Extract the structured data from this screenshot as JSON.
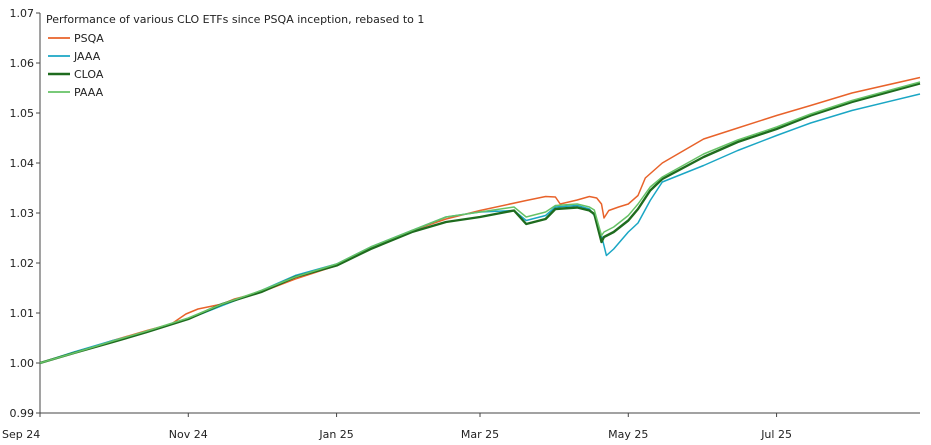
{
  "chart_data": {
    "type": "line",
    "title": "Performance of various CLO ETFs since PSQA inception, rebased to 1",
    "xlabel": "",
    "ylabel": "",
    "ylim": [
      0.99,
      1.07
    ],
    "yticks": [
      "0.99",
      "1.00",
      "1.01",
      "1.02",
      "1.03",
      "1.04",
      "1.05",
      "1.06",
      "1.07"
    ],
    "xlim": [
      "2024-09-01",
      "2025-08-29"
    ],
    "xticks": [
      {
        "date": "2024-09-01",
        "label": "Sep 24"
      },
      {
        "date": "2024-11-01",
        "label": "Nov 24"
      },
      {
        "date": "2025-01-01",
        "label": "Jan 25"
      },
      {
        "date": "2025-03-01",
        "label": "Mar 25"
      },
      {
        "date": "2025-05-01",
        "label": "May 25"
      },
      {
        "date": "2025-07-01",
        "label": "Jul 25"
      }
    ],
    "grid": false,
    "legend_position": "top-left",
    "series": [
      {
        "name": "PSQA",
        "color": "#e8622a",
        "points": [
          [
            "2024-09-01",
            1.0
          ],
          [
            "2024-09-15",
            1.002
          ],
          [
            "2024-10-01",
            1.0045
          ],
          [
            "2024-10-15",
            1.0065
          ],
          [
            "2024-10-25",
            1.0078
          ],
          [
            "2024-10-31",
            1.0098
          ],
          [
            "2024-11-05",
            1.0108
          ],
          [
            "2024-11-15",
            1.0118
          ],
          [
            "2024-11-20",
            1.0128
          ],
          [
            "2024-12-01",
            1.0142
          ],
          [
            "2024-12-15",
            1.0168
          ],
          [
            "2025-01-01",
            1.0195
          ],
          [
            "2025-01-15",
            1.0228
          ],
          [
            "2025-02-01",
            1.0265
          ],
          [
            "2025-02-15",
            1.0288
          ],
          [
            "2025-03-01",
            1.0305
          ],
          [
            "2025-03-20",
            1.0325
          ],
          [
            "2025-03-28",
            1.0333
          ],
          [
            "2025-04-01",
            1.0332
          ],
          [
            "2025-04-03",
            1.0318
          ],
          [
            "2025-04-10",
            1.0326
          ],
          [
            "2025-04-15",
            1.0333
          ],
          [
            "2025-04-18",
            1.033
          ],
          [
            "2025-04-20",
            1.0318
          ],
          [
            "2025-04-21",
            1.029
          ],
          [
            "2025-04-23",
            1.0305
          ],
          [
            "2025-04-27",
            1.0312
          ],
          [
            "2025-05-01",
            1.0318
          ],
          [
            "2025-05-05",
            1.0335
          ],
          [
            "2025-05-08",
            1.037
          ],
          [
            "2025-05-15",
            1.04
          ],
          [
            "2025-06-01",
            1.0448
          ],
          [
            "2025-06-15",
            1.047
          ],
          [
            "2025-07-01",
            1.0495
          ],
          [
            "2025-07-15",
            1.0515
          ],
          [
            "2025-08-01",
            1.054
          ],
          [
            "2025-08-29",
            1.0571
          ]
        ]
      },
      {
        "name": "JAAA",
        "color": "#1aa6c4",
        "points": [
          [
            "2024-09-01",
            1.0
          ],
          [
            "2024-09-15",
            1.0022
          ],
          [
            "2024-10-01",
            1.0045
          ],
          [
            "2024-10-15",
            1.0062
          ],
          [
            "2024-11-01",
            1.0088
          ],
          [
            "2024-11-15",
            1.0115
          ],
          [
            "2024-12-01",
            1.0145
          ],
          [
            "2024-12-15",
            1.0175
          ],
          [
            "2025-01-01",
            1.0198
          ],
          [
            "2025-01-15",
            1.0232
          ],
          [
            "2025-02-01",
            1.0265
          ],
          [
            "2025-02-15",
            1.0292
          ],
          [
            "2025-03-01",
            1.0302
          ],
          [
            "2025-03-15",
            1.0305
          ],
          [
            "2025-03-20",
            1.0285
          ],
          [
            "2025-03-28",
            1.0295
          ],
          [
            "2025-04-01",
            1.0312
          ],
          [
            "2025-04-10",
            1.0315
          ],
          [
            "2025-04-15",
            1.0308
          ],
          [
            "2025-04-17",
            1.0295
          ],
          [
            "2025-04-20",
            1.0255
          ],
          [
            "2025-04-22",
            1.0215
          ],
          [
            "2025-04-25",
            1.0228
          ],
          [
            "2025-05-01",
            1.0262
          ],
          [
            "2025-05-05",
            1.028
          ],
          [
            "2025-05-10",
            1.0325
          ],
          [
            "2025-05-15",
            1.0362
          ],
          [
            "2025-06-01",
            1.0395
          ],
          [
            "2025-06-15",
            1.0425
          ],
          [
            "2025-07-01",
            1.0455
          ],
          [
            "2025-07-15",
            1.048
          ],
          [
            "2025-08-01",
            1.0505
          ],
          [
            "2025-08-29",
            1.0538
          ]
        ]
      },
      {
        "name": "CLOA",
        "color": "#1e6b1e",
        "points": [
          [
            "2024-09-01",
            1.0
          ],
          [
            "2024-09-15",
            1.002
          ],
          [
            "2024-10-01",
            1.0042
          ],
          [
            "2024-10-15",
            1.0062
          ],
          [
            "2024-11-01",
            1.0088
          ],
          [
            "2024-11-15",
            1.0118
          ],
          [
            "2024-12-01",
            1.0142
          ],
          [
            "2024-12-15",
            1.0172
          ],
          [
            "2025-01-01",
            1.0195
          ],
          [
            "2025-01-15",
            1.0228
          ],
          [
            "2025-02-01",
            1.0262
          ],
          [
            "2025-02-15",
            1.0282
          ],
          [
            "2025-03-01",
            1.0292
          ],
          [
            "2025-03-15",
            1.0305
          ],
          [
            "2025-03-20",
            1.0278
          ],
          [
            "2025-03-28",
            1.0288
          ],
          [
            "2025-04-01",
            1.0308
          ],
          [
            "2025-04-10",
            1.0311
          ],
          [
            "2025-04-15",
            1.0305
          ],
          [
            "2025-04-17",
            1.0298
          ],
          [
            "2025-04-20",
            1.0242
          ],
          [
            "2025-04-21",
            1.0252
          ],
          [
            "2025-04-25",
            1.0262
          ],
          [
            "2025-05-01",
            1.0285
          ],
          [
            "2025-05-05",
            1.0308
          ],
          [
            "2025-05-10",
            1.0345
          ],
          [
            "2025-05-15",
            1.0368
          ],
          [
            "2025-06-01",
            1.0412
          ],
          [
            "2025-06-15",
            1.0442
          ],
          [
            "2025-07-01",
            1.0468
          ],
          [
            "2025-07-15",
            1.0495
          ],
          [
            "2025-08-01",
            1.0522
          ],
          [
            "2025-08-29",
            1.0559
          ]
        ]
      },
      {
        "name": "PAAA",
        "color": "#66c266",
        "points": [
          [
            "2024-09-01",
            1.0
          ],
          [
            "2024-09-15",
            1.002
          ],
          [
            "2024-10-01",
            1.0044
          ],
          [
            "2024-10-15",
            1.0064
          ],
          [
            "2024-11-01",
            1.009
          ],
          [
            "2024-11-15",
            1.0118
          ],
          [
            "2024-12-01",
            1.0145
          ],
          [
            "2024-12-15",
            1.0172
          ],
          [
            "2025-01-01",
            1.0198
          ],
          [
            "2025-01-15",
            1.0232
          ],
          [
            "2025-02-01",
            1.0265
          ],
          [
            "2025-02-15",
            1.0292
          ],
          [
            "2025-03-01",
            1.0302
          ],
          [
            "2025-03-15",
            1.0312
          ],
          [
            "2025-03-20",
            1.0292
          ],
          [
            "2025-03-28",
            1.0302
          ],
          [
            "2025-04-01",
            1.0315
          ],
          [
            "2025-04-10",
            1.0318
          ],
          [
            "2025-04-15",
            1.0312
          ],
          [
            "2025-04-17",
            1.0306
          ],
          [
            "2025-04-20",
            1.0255
          ],
          [
            "2025-04-21",
            1.0262
          ],
          [
            "2025-04-25",
            1.0272
          ],
          [
            "2025-05-01",
            1.0295
          ],
          [
            "2025-05-05",
            1.0318
          ],
          [
            "2025-05-10",
            1.0352
          ],
          [
            "2025-05-15",
            1.0372
          ],
          [
            "2025-06-01",
            1.0418
          ],
          [
            "2025-06-15",
            1.0446
          ],
          [
            "2025-07-01",
            1.0472
          ],
          [
            "2025-07-15",
            1.0498
          ],
          [
            "2025-08-01",
            1.0525
          ],
          [
            "2025-08-29",
            1.0562
          ]
        ]
      }
    ]
  }
}
